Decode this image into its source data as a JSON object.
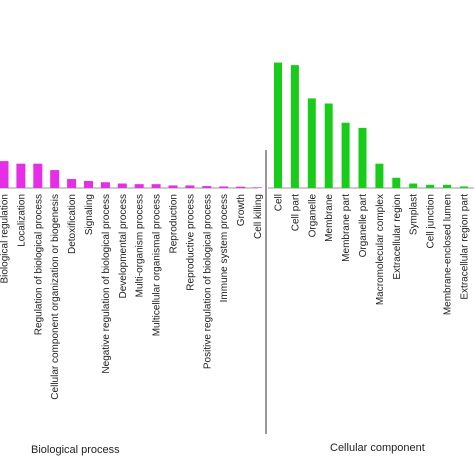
{
  "chart_data": {
    "type": "bar",
    "ylim": [
      0,
      100
    ],
    "groups": [
      {
        "name": "Biological process",
        "color": "#e52ee5",
        "categories": [
          "Biological regulation",
          "Localization",
          "Regulation of biological process",
          "Cellular component organization or biogenesis",
          "Detoxification",
          "Signaling",
          "Negative regulation of biological process",
          "Developmental process",
          "Multi-organism process",
          "Multicellular organismal process",
          "Reproduction",
          "Reproductive process",
          "Positive regulation of biological process",
          "Immune system process",
          "Growth",
          "Cell killing"
        ],
        "values": [
          21,
          19,
          19,
          14,
          7,
          5.5,
          4.5,
          3.5,
          3,
          3,
          2,
          2,
          1.5,
          1.2,
          1,
          0.5
        ]
      },
      {
        "name": "Cellular component",
        "color": "#19cc19",
        "categories": [
          "Cell",
          "Cell part",
          "Organelle",
          "Membrane",
          "Membrane part",
          "Organelle part",
          "Macromolecular complex",
          "Extracellular region",
          "Symplast",
          "Cell junction",
          "Membrane-enclosed lumen",
          "Extracellular region part"
        ],
        "values": [
          98,
          96,
          70,
          66,
          51,
          47,
          19,
          8,
          3.5,
          2.5,
          2.5,
          1.2
        ]
      }
    ]
  }
}
